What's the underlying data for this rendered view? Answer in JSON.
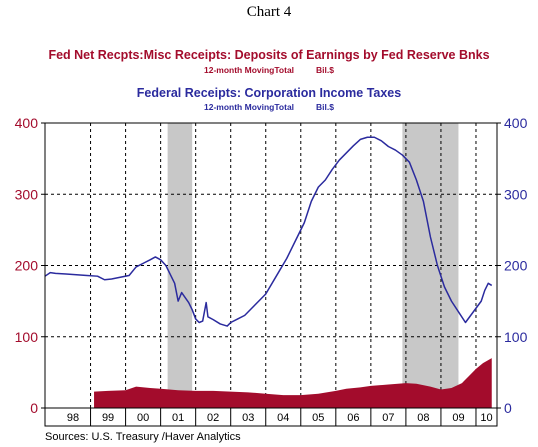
{
  "heading": "Chart 4",
  "series_titles": [
    {
      "title": "Fed Net Recpts:Misc Receipts: Deposits of Earnings by Fed Reserve Bnks",
      "measure": "12-month MovingTotal",
      "unit": "Bil.$"
    },
    {
      "title": "Federal Receipts: Corporation Income Taxes",
      "measure": "12-month MovingTotal",
      "unit": "Bil.$"
    }
  ],
  "source": "Sources:  U.S. Treasury /Haver Analytics",
  "chart_data": {
    "type": "line",
    "x_tick_labels": [
      "98",
      "99",
      "00",
      "01",
      "02",
      "03",
      "04",
      "05",
      "06",
      "07",
      "08",
      "09",
      "10"
    ],
    "x_range": [
      1997.7,
      2010.6
    ],
    "ylim": [
      0,
      400
    ],
    "y_ticks": [
      0,
      100,
      200,
      300,
      400
    ],
    "grid": true,
    "recessions": [
      [
        2001.2,
        2001.9
      ],
      [
        2007.9,
        2009.5
      ]
    ],
    "series": [
      {
        "kind": "line",
        "color": "#2b2b9e",
        "points": [
          [
            1997.7,
            185
          ],
          [
            1997.85,
            190
          ],
          [
            1998.0,
            189
          ],
          [
            1998.3,
            188
          ],
          [
            1998.6,
            187
          ],
          [
            1998.9,
            186
          ],
          [
            1999.2,
            185
          ],
          [
            1999.4,
            180
          ],
          [
            1999.6,
            181
          ],
          [
            1999.9,
            184
          ],
          [
            2000.1,
            186
          ],
          [
            2000.3,
            198
          ],
          [
            2000.5,
            203
          ],
          [
            2000.7,
            208
          ],
          [
            2000.85,
            212
          ],
          [
            2001.0,
            208
          ],
          [
            2001.15,
            200
          ],
          [
            2001.3,
            185
          ],
          [
            2001.4,
            175
          ],
          [
            2001.5,
            150
          ],
          [
            2001.6,
            162
          ],
          [
            2001.7,
            155
          ],
          [
            2001.8,
            148
          ],
          [
            2001.9,
            138
          ],
          [
            2002.0,
            125
          ],
          [
            2002.1,
            120
          ],
          [
            2002.2,
            122
          ],
          [
            2002.3,
            148
          ],
          [
            2002.35,
            128
          ],
          [
            2002.5,
            124
          ],
          [
            2002.7,
            118
          ],
          [
            2002.9,
            115
          ],
          [
            2003.0,
            120
          ],
          [
            2003.2,
            125
          ],
          [
            2003.4,
            130
          ],
          [
            2003.6,
            140
          ],
          [
            2003.8,
            150
          ],
          [
            2004.0,
            160
          ],
          [
            2004.3,
            185
          ],
          [
            2004.6,
            210
          ],
          [
            2004.9,
            240
          ],
          [
            2005.1,
            260
          ],
          [
            2005.3,
            290
          ],
          [
            2005.5,
            310
          ],
          [
            2005.7,
            320
          ],
          [
            2005.9,
            335
          ],
          [
            2006.1,
            348
          ],
          [
            2006.3,
            358
          ],
          [
            2006.5,
            368
          ],
          [
            2006.7,
            377
          ],
          [
            2006.9,
            380
          ],
          [
            2007.1,
            380
          ],
          [
            2007.3,
            375
          ],
          [
            2007.5,
            367
          ],
          [
            2007.7,
            362
          ],
          [
            2007.9,
            355
          ],
          [
            2008.1,
            345
          ],
          [
            2008.3,
            320
          ],
          [
            2008.5,
            290
          ],
          [
            2008.7,
            240
          ],
          [
            2008.9,
            200
          ],
          [
            2009.1,
            170
          ],
          [
            2009.3,
            150
          ],
          [
            2009.5,
            135
          ],
          [
            2009.7,
            120
          ],
          [
            2009.85,
            130
          ],
          [
            2010.0,
            140
          ],
          [
            2010.15,
            150
          ],
          [
            2010.25,
            165
          ],
          [
            2010.35,
            175
          ],
          [
            2010.45,
            172
          ]
        ]
      },
      {
        "kind": "area",
        "color": "#a30c2c",
        "points": [
          [
            1999.1,
            23
          ],
          [
            1999.5,
            24
          ],
          [
            2000.0,
            25
          ],
          [
            2000.3,
            30
          ],
          [
            2000.7,
            28
          ],
          [
            2001.0,
            27
          ],
          [
            2001.5,
            25
          ],
          [
            2002.0,
            24
          ],
          [
            2002.5,
            24
          ],
          [
            2003.0,
            23
          ],
          [
            2003.5,
            22
          ],
          [
            2004.0,
            20
          ],
          [
            2004.5,
            18
          ],
          [
            2005.0,
            18
          ],
          [
            2005.5,
            20
          ],
          [
            2006.0,
            24
          ],
          [
            2006.3,
            27
          ],
          [
            2006.7,
            29
          ],
          [
            2007.0,
            31
          ],
          [
            2007.5,
            33
          ],
          [
            2008.0,
            35
          ],
          [
            2008.3,
            34
          ],
          [
            2008.7,
            30
          ],
          [
            2009.0,
            26
          ],
          [
            2009.3,
            28
          ],
          [
            2009.6,
            35
          ],
          [
            2009.8,
            45
          ],
          [
            2010.0,
            55
          ],
          [
            2010.2,
            63
          ],
          [
            2010.45,
            70
          ]
        ]
      }
    ]
  }
}
